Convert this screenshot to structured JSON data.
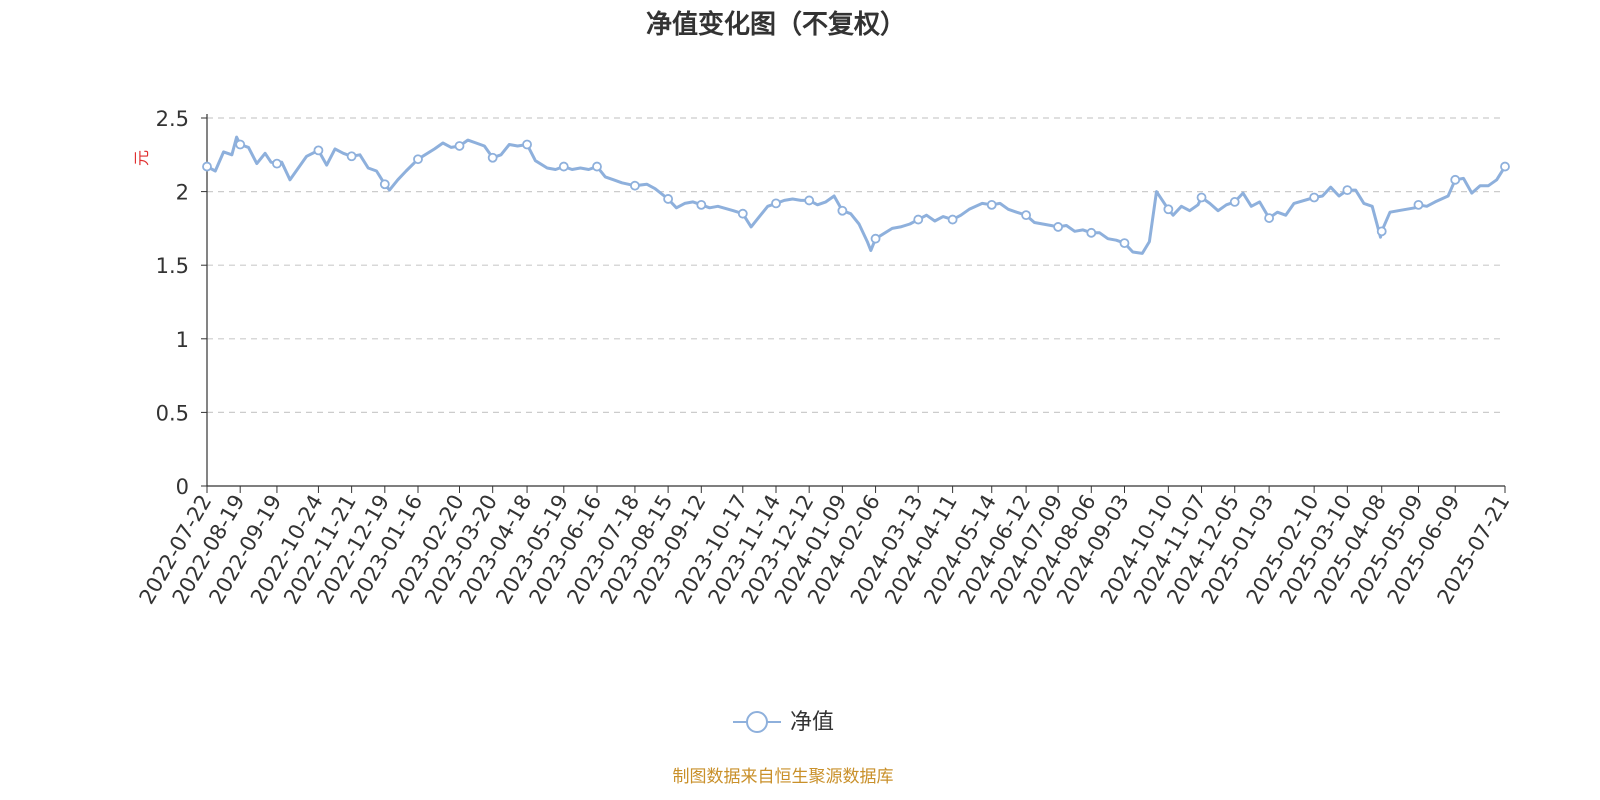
{
  "title": "净值变化图（不复权）",
  "source_note": "制图数据来自恒生聚源数据库",
  "colors": {
    "line": "#8eb0dc",
    "unit_label": "#e03030",
    "axis": "#333333",
    "grid": "#cccccc",
    "source": "#c9902a"
  },
  "chart_data": {
    "type": "line",
    "title": "净值变化图（不复权）",
    "xlabel": "",
    "ylabel": "元",
    "ylim": [
      0,
      2.5
    ],
    "yticks": [
      0,
      0.5,
      1,
      1.5,
      2,
      2.5
    ],
    "ytick_labels": [
      "0",
      "0.5",
      "1",
      "1.5",
      "2",
      "2.5"
    ],
    "grid": true,
    "legend": {
      "position": "bottom-center",
      "entries": [
        "净值"
      ]
    },
    "xtick_labels": [
      "2022-07-22",
      "2022-08-19",
      "2022-09-19",
      "2022-10-24",
      "2022-11-21",
      "2022-12-19",
      "2023-01-16",
      "2023-02-20",
      "2023-03-20",
      "2023-04-18",
      "2023-05-19",
      "2023-06-16",
      "2023-07-18",
      "2023-08-15",
      "2023-09-12",
      "2023-10-17",
      "2023-11-14",
      "2023-12-12",
      "2024-01-09",
      "2024-02-06",
      "2024-03-13",
      "2024-04-11",
      "2024-05-14",
      "2024-06-12",
      "2024-07-09",
      "2024-08-06",
      "2024-09-03",
      "2024-10-10",
      "2024-11-07",
      "2024-12-05",
      "2025-01-03",
      "2025-02-10",
      "2025-03-10",
      "2025-04-08",
      "2025-05-09",
      "2025-06-09",
      "2025-07-21"
    ],
    "series": [
      {
        "name": "净值",
        "points": [
          [
            "2022-07-22",
            2.17
          ],
          [
            "2022-07-29",
            2.14
          ],
          [
            "2022-08-05",
            2.27
          ],
          [
            "2022-08-12",
            2.25
          ],
          [
            "2022-08-16",
            2.37
          ],
          [
            "2022-08-19",
            2.32
          ],
          [
            "2022-08-26",
            2.3
          ],
          [
            "2022-09-02",
            2.19
          ],
          [
            "2022-09-09",
            2.26
          ],
          [
            "2022-09-14",
            2.2
          ],
          [
            "2022-09-19",
            2.19
          ],
          [
            "2022-09-23",
            2.2
          ],
          [
            "2022-09-30",
            2.08
          ],
          [
            "2022-10-14",
            2.24
          ],
          [
            "2022-10-24",
            2.28
          ],
          [
            "2022-10-31",
            2.18
          ],
          [
            "2022-11-07",
            2.29
          ],
          [
            "2022-11-14",
            2.26
          ],
          [
            "2022-11-21",
            2.24
          ],
          [
            "2022-11-28",
            2.25
          ],
          [
            "2022-12-05",
            2.16
          ],
          [
            "2022-12-12",
            2.14
          ],
          [
            "2022-12-19",
            2.05
          ],
          [
            "2022-12-23",
            2.01
          ],
          [
            "2022-12-30",
            2.08
          ],
          [
            "2023-01-06",
            2.14
          ],
          [
            "2023-01-16",
            2.22
          ],
          [
            "2023-01-30",
            2.29
          ],
          [
            "2023-02-06",
            2.33
          ],
          [
            "2023-02-13",
            2.3
          ],
          [
            "2023-02-20",
            2.31
          ],
          [
            "2023-02-27",
            2.35
          ],
          [
            "2023-03-06",
            2.33
          ],
          [
            "2023-03-13",
            2.31
          ],
          [
            "2023-03-20",
            2.23
          ],
          [
            "2023-03-27",
            2.25
          ],
          [
            "2023-04-03",
            2.32
          ],
          [
            "2023-04-10",
            2.31
          ],
          [
            "2023-04-18",
            2.32
          ],
          [
            "2023-04-25",
            2.21
          ],
          [
            "2023-05-05",
            2.16
          ],
          [
            "2023-05-12",
            2.15
          ],
          [
            "2023-05-19",
            2.17
          ],
          [
            "2023-05-26",
            2.15
          ],
          [
            "2023-06-02",
            2.16
          ],
          [
            "2023-06-09",
            2.15
          ],
          [
            "2023-06-16",
            2.17
          ],
          [
            "2023-06-23",
            2.1
          ],
          [
            "2023-06-30",
            2.08
          ],
          [
            "2023-07-07",
            2.06
          ],
          [
            "2023-07-18",
            2.04
          ],
          [
            "2023-07-28",
            2.05
          ],
          [
            "2023-08-04",
            2.02
          ],
          [
            "2023-08-15",
            1.95
          ],
          [
            "2023-08-22",
            1.89
          ],
          [
            "2023-08-29",
            1.92
          ],
          [
            "2023-09-05",
            1.93
          ],
          [
            "2023-09-12",
            1.91
          ],
          [
            "2023-09-19",
            1.89
          ],
          [
            "2023-09-26",
            1.9
          ],
          [
            "2023-10-09",
            1.87
          ],
          [
            "2023-10-17",
            1.85
          ],
          [
            "2023-10-24",
            1.76
          ],
          [
            "2023-10-31",
            1.83
          ],
          [
            "2023-11-07",
            1.9
          ],
          [
            "2023-11-14",
            1.92
          ],
          [
            "2023-11-21",
            1.94
          ],
          [
            "2023-11-28",
            1.95
          ],
          [
            "2023-12-05",
            1.94
          ],
          [
            "2023-12-12",
            1.94
          ],
          [
            "2023-12-19",
            1.91
          ],
          [
            "2023-12-26",
            1.93
          ],
          [
            "2024-01-02",
            1.97
          ],
          [
            "2024-01-09",
            1.87
          ],
          [
            "2024-01-16",
            1.85
          ],
          [
            "2024-01-23",
            1.78
          ],
          [
            "2024-01-30",
            1.66
          ],
          [
            "2024-02-02",
            1.6
          ],
          [
            "2024-02-06",
            1.68
          ],
          [
            "2024-02-20",
            1.75
          ],
          [
            "2024-02-27",
            1.76
          ],
          [
            "2024-03-06",
            1.78
          ],
          [
            "2024-03-13",
            1.81
          ],
          [
            "2024-03-20",
            1.84
          ],
          [
            "2024-03-27",
            1.8
          ],
          [
            "2024-04-03",
            1.83
          ],
          [
            "2024-04-11",
            1.81
          ],
          [
            "2024-04-18",
            1.84
          ],
          [
            "2024-04-25",
            1.88
          ],
          [
            "2024-05-06",
            1.92
          ],
          [
            "2024-05-14",
            1.91
          ],
          [
            "2024-05-21",
            1.92
          ],
          [
            "2024-05-28",
            1.88
          ],
          [
            "2024-06-04",
            1.86
          ],
          [
            "2024-06-12",
            1.84
          ],
          [
            "2024-06-19",
            1.79
          ],
          [
            "2024-06-26",
            1.78
          ],
          [
            "2024-07-03",
            1.77
          ],
          [
            "2024-07-09",
            1.76
          ],
          [
            "2024-07-16",
            1.77
          ],
          [
            "2024-07-23",
            1.73
          ],
          [
            "2024-07-30",
            1.74
          ],
          [
            "2024-08-06",
            1.72
          ],
          [
            "2024-08-13",
            1.72
          ],
          [
            "2024-08-20",
            1.68
          ],
          [
            "2024-08-27",
            1.67
          ],
          [
            "2024-09-03",
            1.65
          ],
          [
            "2024-09-10",
            1.59
          ],
          [
            "2024-09-18",
            1.58
          ],
          [
            "2024-09-24",
            1.66
          ],
          [
            "2024-09-30",
            2.0
          ],
          [
            "2024-10-10",
            1.88
          ],
          [
            "2024-10-14",
            1.84
          ],
          [
            "2024-10-21",
            1.9
          ],
          [
            "2024-10-28",
            1.87
          ],
          [
            "2024-11-04",
            1.91
          ],
          [
            "2024-11-07",
            1.96
          ],
          [
            "2024-11-14",
            1.92
          ],
          [
            "2024-11-21",
            1.87
          ],
          [
            "2024-11-28",
            1.91
          ],
          [
            "2024-12-05",
            1.93
          ],
          [
            "2024-12-12",
            1.99
          ],
          [
            "2024-12-19",
            1.9
          ],
          [
            "2024-12-26",
            1.93
          ],
          [
            "2025-01-03",
            1.82
          ],
          [
            "2025-01-10",
            1.86
          ],
          [
            "2025-01-17",
            1.84
          ],
          [
            "2025-01-24",
            1.92
          ],
          [
            "2025-02-10",
            1.96
          ],
          [
            "2025-02-17",
            1.97
          ],
          [
            "2025-02-24",
            2.03
          ],
          [
            "2025-03-03",
            1.97
          ],
          [
            "2025-03-10",
            2.01
          ],
          [
            "2025-03-17",
            2.01
          ],
          [
            "2025-03-24",
            1.92
          ],
          [
            "2025-03-31",
            1.9
          ],
          [
            "2025-04-07",
            1.69
          ],
          [
            "2025-04-08",
            1.73
          ],
          [
            "2025-04-15",
            1.86
          ],
          [
            "2025-04-22",
            1.87
          ],
          [
            "2025-05-06",
            1.89
          ],
          [
            "2025-05-09",
            1.91
          ],
          [
            "2025-05-16",
            1.9
          ],
          [
            "2025-05-23",
            1.93
          ],
          [
            "2025-06-03",
            1.97
          ],
          [
            "2025-06-09",
            2.08
          ],
          [
            "2025-06-16",
            2.09
          ],
          [
            "2025-06-23",
            1.99
          ],
          [
            "2025-06-30",
            2.04
          ],
          [
            "2025-07-07",
            2.04
          ],
          [
            "2025-07-14",
            2.08
          ],
          [
            "2025-07-21",
            2.17
          ]
        ],
        "markers": [
          [
            "2022-07-22",
            2.17
          ],
          [
            "2022-08-19",
            2.32
          ],
          [
            "2022-09-19",
            2.19
          ],
          [
            "2022-10-24",
            2.28
          ],
          [
            "2022-11-21",
            2.24
          ],
          [
            "2022-12-19",
            2.05
          ],
          [
            "2023-01-16",
            2.22
          ],
          [
            "2023-02-20",
            2.31
          ],
          [
            "2023-03-20",
            2.23
          ],
          [
            "2023-04-18",
            2.32
          ],
          [
            "2023-05-19",
            2.17
          ],
          [
            "2023-06-16",
            2.17
          ],
          [
            "2023-07-18",
            2.04
          ],
          [
            "2023-08-15",
            1.95
          ],
          [
            "2023-09-12",
            1.91
          ],
          [
            "2023-10-17",
            1.85
          ],
          [
            "2023-11-14",
            1.92
          ],
          [
            "2023-12-12",
            1.94
          ],
          [
            "2024-01-09",
            1.87
          ],
          [
            "2024-02-06",
            1.68
          ],
          [
            "2024-03-13",
            1.81
          ],
          [
            "2024-04-11",
            1.81
          ],
          [
            "2024-05-14",
            1.91
          ],
          [
            "2024-06-12",
            1.84
          ],
          [
            "2024-07-09",
            1.76
          ],
          [
            "2024-08-06",
            1.72
          ],
          [
            "2024-09-03",
            1.65
          ],
          [
            "2024-10-10",
            1.88
          ],
          [
            "2024-11-07",
            1.96
          ],
          [
            "2024-12-05",
            1.93
          ],
          [
            "2025-01-03",
            1.82
          ],
          [
            "2025-02-10",
            1.96
          ],
          [
            "2025-03-10",
            2.01
          ],
          [
            "2025-04-08",
            1.73
          ],
          [
            "2025-05-09",
            1.91
          ],
          [
            "2025-06-09",
            2.08
          ],
          [
            "2025-07-21",
            2.17
          ]
        ]
      }
    ]
  }
}
